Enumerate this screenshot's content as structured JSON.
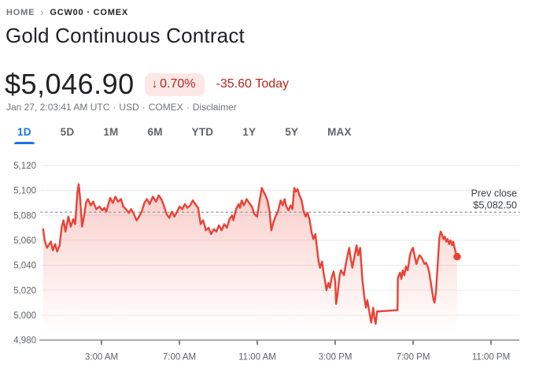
{
  "breadcrumb": {
    "home": "HOME",
    "chevron": "›",
    "symbol": "GCW00 · COMEX"
  },
  "title": "Gold Continuous Contract",
  "quote": {
    "price": "$5,046.90",
    "arrow": "↓",
    "change_percent": "0.70%",
    "change_direction": "down",
    "change_amount": "-35.60",
    "change_period": "Today"
  },
  "meta": {
    "timestamp": "Jan 27, 2:03:41 AM UTC",
    "currency": "USD",
    "exchange": "COMEX",
    "disclaimer": "Disclaimer",
    "sep": "·"
  },
  "tabs": {
    "items": [
      {
        "label": "1D",
        "selected": true
      },
      {
        "label": "5D",
        "selected": false
      },
      {
        "label": "1M",
        "selected": false
      },
      {
        "label": "6M",
        "selected": false
      },
      {
        "label": "YTD",
        "selected": false
      },
      {
        "label": "1Y",
        "selected": false
      },
      {
        "label": "5Y",
        "selected": false
      },
      {
        "label": "MAX",
        "selected": false
      }
    ]
  },
  "colors": {
    "line": "#E94235",
    "fill": "#EA4335",
    "accent": "#1A73E8",
    "badge_bg": "#FCE8E6",
    "badge_text": "#B3261E",
    "grid": "#E8EAED",
    "axis": "#80868B",
    "label_gray": "#5F6368",
    "meta_gray": "#70757A",
    "title_dark": "#202124",
    "dotted": "#9AA0A6",
    "annotation": "#3C4043"
  },
  "chart_data": {
    "type": "area",
    "title": "Gold Continuous Contract — 1D intraday price (USD)",
    "x_unit": "hour_of_day",
    "xlim_hours": [
      0,
      24.5
    ],
    "ylim": [
      4980,
      5120
    ],
    "grid": true,
    "y_ticks": [
      {
        "value": 5120,
        "label": "5,120"
      },
      {
        "value": 5100,
        "label": "5,100"
      },
      {
        "value": 5080,
        "label": "5,080"
      },
      {
        "value": 5060,
        "label": "5,060"
      },
      {
        "value": 5040,
        "label": "5,040"
      },
      {
        "value": 5020,
        "label": "5,020"
      },
      {
        "value": 5000,
        "label": "5,000"
      },
      {
        "value": 4980,
        "label": "4,980"
      }
    ],
    "x_ticks": [
      {
        "hour": 3,
        "label": "3:00 AM"
      },
      {
        "hour": 7,
        "label": "7:00 AM"
      },
      {
        "hour": 11,
        "label": "11:00 AM"
      },
      {
        "hour": 15,
        "label": "3:00 PM"
      },
      {
        "hour": 19,
        "label": "7:00 PM"
      },
      {
        "hour": 23,
        "label": "11:00 PM"
      }
    ],
    "prev_close": {
      "label": "Prev close",
      "value_label": "$5,082.50",
      "value": 5082.5
    },
    "last_point": {
      "hour": 21.26,
      "value": 5046.9
    },
    "points": [
      [
        0.0,
        5069
      ],
      [
        0.08,
        5060
      ],
      [
        0.2,
        5054
      ],
      [
        0.4,
        5059
      ],
      [
        0.5,
        5052
      ],
      [
        0.62,
        5057
      ],
      [
        0.72,
        5051
      ],
      [
        0.85,
        5056
      ],
      [
        0.95,
        5070
      ],
      [
        1.05,
        5076
      ],
      [
        1.15,
        5067
      ],
      [
        1.3,
        5079
      ],
      [
        1.42,
        5071
      ],
      [
        1.55,
        5077
      ],
      [
        1.65,
        5073
      ],
      [
        1.76,
        5098
      ],
      [
        1.83,
        5105
      ],
      [
        1.9,
        5094
      ],
      [
        2.0,
        5071
      ],
      [
        2.1,
        5079
      ],
      [
        2.2,
        5090
      ],
      [
        2.3,
        5093
      ],
      [
        2.45,
        5088
      ],
      [
        2.57,
        5091
      ],
      [
        2.73,
        5085
      ],
      [
        2.9,
        5087
      ],
      [
        3.05,
        5084
      ],
      [
        3.15,
        5086
      ],
      [
        3.25,
        5083
      ],
      [
        3.35,
        5089
      ],
      [
        3.45,
        5094
      ],
      [
        3.58,
        5090
      ],
      [
        3.71,
        5095
      ],
      [
        3.85,
        5091
      ],
      [
        4.0,
        5093
      ],
      [
        4.12,
        5087
      ],
      [
        4.25,
        5085
      ],
      [
        4.4,
        5082
      ],
      [
        4.52,
        5085
      ],
      [
        4.66,
        5081
      ],
      [
        4.8,
        5076
      ],
      [
        4.93,
        5079
      ],
      [
        5.06,
        5083
      ],
      [
        5.2,
        5090
      ],
      [
        5.33,
        5093
      ],
      [
        5.47,
        5089
      ],
      [
        5.64,
        5095
      ],
      [
        5.8,
        5091
      ],
      [
        5.94,
        5096
      ],
      [
        6.07,
        5093
      ],
      [
        6.2,
        5088
      ],
      [
        6.34,
        5081
      ],
      [
        6.48,
        5078
      ],
      [
        6.61,
        5083
      ],
      [
        6.74,
        5079
      ],
      [
        6.88,
        5083
      ],
      [
        7.01,
        5087
      ],
      [
        7.15,
        5085
      ],
      [
        7.28,
        5089
      ],
      [
        7.42,
        5086
      ],
      [
        7.55,
        5088
      ],
      [
        7.69,
        5092
      ],
      [
        7.82,
        5089
      ],
      [
        7.96,
        5086
      ],
      [
        8.09,
        5073
      ],
      [
        8.22,
        5076
      ],
      [
        8.36,
        5068
      ],
      [
        8.5,
        5070
      ],
      [
        8.63,
        5065
      ],
      [
        8.77,
        5069
      ],
      [
        8.9,
        5067
      ],
      [
        9.03,
        5072
      ],
      [
        9.17,
        5068
      ],
      [
        9.3,
        5073
      ],
      [
        9.44,
        5070
      ],
      [
        9.57,
        5077
      ],
      [
        9.71,
        5080
      ],
      [
        9.77,
        5076
      ],
      [
        9.91,
        5085
      ],
      [
        10.04,
        5089
      ],
      [
        10.11,
        5086
      ],
      [
        10.2,
        5092
      ],
      [
        10.31,
        5088
      ],
      [
        10.45,
        5093
      ],
      [
        10.58,
        5090
      ],
      [
        10.72,
        5087
      ],
      [
        10.85,
        5081
      ],
      [
        10.99,
        5079
      ],
      [
        11.12,
        5092
      ],
      [
        11.23,
        5102
      ],
      [
        11.32,
        5099
      ],
      [
        11.42,
        5096
      ],
      [
        11.52,
        5092
      ],
      [
        11.63,
        5083
      ],
      [
        11.72,
        5068
      ],
      [
        11.82,
        5074
      ],
      [
        11.93,
        5079
      ],
      [
        12.06,
        5083
      ],
      [
        12.2,
        5092
      ],
      [
        12.3,
        5088
      ],
      [
        12.4,
        5093
      ],
      [
        12.49,
        5087
      ],
      [
        12.6,
        5084
      ],
      [
        12.71,
        5088
      ],
      [
        12.8,
        5085
      ],
      [
        12.9,
        5102
      ],
      [
        12.98,
        5099
      ],
      [
        13.07,
        5101
      ],
      [
        13.17,
        5096
      ],
      [
        13.28,
        5092
      ],
      [
        13.38,
        5083
      ],
      [
        13.48,
        5079
      ],
      [
        13.57,
        5082
      ],
      [
        13.68,
        5077
      ],
      [
        13.79,
        5066
      ],
      [
        13.88,
        5061
      ],
      [
        13.98,
        5065
      ],
      [
        14.08,
        5052
      ],
      [
        14.15,
        5043
      ],
      [
        14.22,
        5038
      ],
      [
        14.33,
        5043
      ],
      [
        14.39,
        5035
      ],
      [
        14.49,
        5026
      ],
      [
        14.55,
        5020
      ],
      [
        14.65,
        5026
      ],
      [
        14.73,
        5022
      ],
      [
        14.82,
        5030
      ],
      [
        14.92,
        5035
      ],
      [
        15.0,
        5027
      ],
      [
        15.05,
        5009
      ],
      [
        15.13,
        5018
      ],
      [
        15.23,
        5032
      ],
      [
        15.3,
        5036
      ],
      [
        15.45,
        5032
      ],
      [
        15.57,
        5043
      ],
      [
        15.72,
        5054
      ],
      [
        15.8,
        5045
      ],
      [
        15.88,
        5038
      ],
      [
        16.0,
        5048
      ],
      [
        16.1,
        5056
      ],
      [
        16.18,
        5048
      ],
      [
        16.28,
        5054
      ],
      [
        16.4,
        5028
      ],
      [
        16.5,
        5014
      ],
      [
        16.58,
        5006
      ],
      [
        16.65,
        5012
      ],
      [
        16.75,
        5003
      ],
      [
        16.85,
        4994
      ],
      [
        16.95,
        5006
      ],
      [
        17.02,
        4997
      ],
      [
        17.08,
        4993
      ],
      [
        17.15,
        5003
      ],
      [
        17.25,
        5003
      ],
      [
        18.2,
        5004
      ],
      [
        18.22,
        5030
      ],
      [
        18.33,
        5034
      ],
      [
        18.4,
        5029
      ],
      [
        18.47,
        5036
      ],
      [
        18.55,
        5032
      ],
      [
        18.63,
        5039
      ],
      [
        18.72,
        5036
      ],
      [
        18.85,
        5049
      ],
      [
        18.95,
        5053
      ],
      [
        19.0,
        5054
      ],
      [
        19.07,
        5048
      ],
      [
        19.17,
        5041
      ],
      [
        19.25,
        5045
      ],
      [
        19.33,
        5048
      ],
      [
        19.4,
        5047
      ],
      [
        19.5,
        5044
      ],
      [
        19.58,
        5041
      ],
      [
        19.67,
        5042
      ],
      [
        19.77,
        5038
      ],
      [
        19.83,
        5034
      ],
      [
        19.9,
        5027
      ],
      [
        19.97,
        5020
      ],
      [
        20.05,
        5012
      ],
      [
        20.1,
        5010
      ],
      [
        20.17,
        5018
      ],
      [
        20.22,
        5030
      ],
      [
        20.28,
        5045
      ],
      [
        20.35,
        5062
      ],
      [
        20.42,
        5067
      ],
      [
        20.48,
        5065
      ],
      [
        20.55,
        5061
      ],
      [
        20.62,
        5063
      ],
      [
        20.7,
        5059
      ],
      [
        20.77,
        5061
      ],
      [
        20.85,
        5057
      ],
      [
        20.92,
        5060
      ],
      [
        21.0,
        5056
      ],
      [
        21.06,
        5059
      ],
      [
        21.13,
        5054
      ],
      [
        21.2,
        5050
      ],
      [
        21.26,
        5046.9
      ]
    ]
  }
}
